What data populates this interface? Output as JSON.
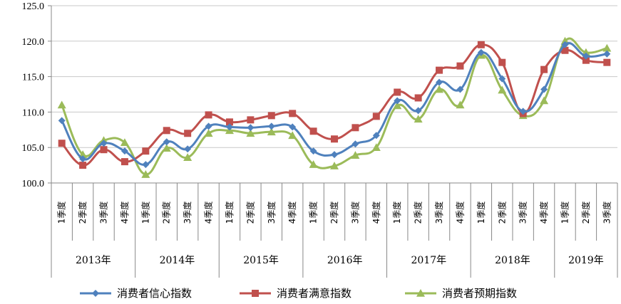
{
  "chart_data": {
    "type": "line",
    "title": "",
    "xlabel": "",
    "ylabel": "",
    "ylim": [
      100.0,
      125.0
    ],
    "y_ticks": [
      "100.0",
      "105.0",
      "110.0",
      "115.0",
      "120.0",
      "125.0"
    ],
    "grid": "horizontal",
    "legend_position": "bottom",
    "categories": [
      "1季度",
      "2季度",
      "3季度",
      "4季度",
      "1季度",
      "2季度",
      "3季度",
      "4季度",
      "1季度",
      "2季度",
      "3季度",
      "4季度",
      "1季度",
      "2季度",
      "3季度",
      "4季度",
      "1季度",
      "2季度",
      "3季度",
      "4季度",
      "1季度",
      "2季度",
      "3季度",
      "4季度",
      "1季度",
      "2季度",
      "3季度"
    ],
    "year_groups": [
      {
        "label": "2013年",
        "count": 4
      },
      {
        "label": "2014年",
        "count": 4
      },
      {
        "label": "2015年",
        "count": 4
      },
      {
        "label": "2016年",
        "count": 4
      },
      {
        "label": "2017年",
        "count": 4
      },
      {
        "label": "2018年",
        "count": 4
      },
      {
        "label": "2019年",
        "count": 3
      }
    ],
    "series": [
      {
        "name": "消费者信心指数",
        "color": "#4F81BD",
        "marker": "diamond",
        "values": [
          108.8,
          103.4,
          105.6,
          104.5,
          102.6,
          105.8,
          104.8,
          108.0,
          107.9,
          107.8,
          108.0,
          107.9,
          104.5,
          104.0,
          105.5,
          106.7,
          111.6,
          110.2,
          114.2,
          113.2,
          118.4,
          114.7,
          110.1,
          113.2,
          119.5,
          117.9,
          118.2
        ]
      },
      {
        "name": "消费者满意指数",
        "color": "#C0504D",
        "marker": "square",
        "values": [
          105.6,
          102.5,
          104.7,
          103.0,
          104.5,
          107.4,
          107.0,
          109.6,
          108.6,
          108.9,
          109.5,
          109.8,
          107.3,
          106.2,
          107.8,
          109.4,
          112.8,
          112.0,
          115.9,
          116.5,
          119.5,
          117.0,
          109.8,
          116.0,
          118.7,
          117.3,
          117.0
        ]
      },
      {
        "name": "消费者预期指数",
        "color": "#9BBB59",
        "marker": "triangle",
        "values": [
          111.0,
          104.0,
          106.0,
          105.7,
          101.2,
          104.9,
          103.6,
          107.0,
          107.4,
          107.0,
          107.2,
          106.7,
          102.6,
          102.4,
          103.9,
          105.0,
          110.9,
          109.0,
          113.2,
          111.0,
          118.0,
          113.1,
          109.5,
          111.6,
          120.0,
          118.4,
          119.0
        ]
      }
    ]
  }
}
